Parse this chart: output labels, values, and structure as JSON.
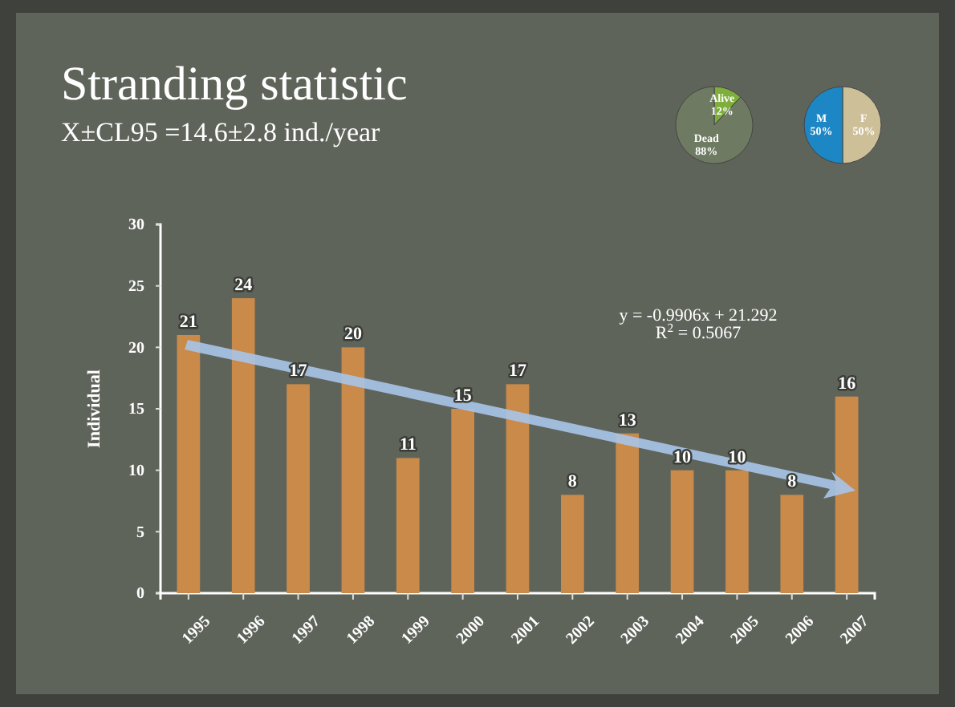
{
  "chart_data": [
    {
      "type": "bar",
      "title": "Stranding statistic",
      "subtitle": "X±CL95 =14.6±2.8 ind./year",
      "ylabel": "Individual",
      "categories": [
        "1995",
        "1996",
        "1997",
        "1998",
        "1999",
        "2000",
        "2001",
        "2002",
        "2003",
        "2004",
        "2005",
        "2006",
        "2007"
      ],
      "series": [
        {
          "type": "bar",
          "color": "#c98a4a",
          "values": [
            21,
            24,
            17,
            20,
            11,
            15,
            17,
            8,
            13,
            10,
            10,
            8,
            16
          ]
        }
      ],
      "data_labels": true,
      "ylim": [
        0,
        30
      ],
      "yticks": [
        0,
        5,
        10,
        15,
        20,
        25,
        30
      ],
      "annotations": [
        "y = -0.9906x + 21.292",
        "R$^{2}$ = 0.5067"
      ]
    },
    {
      "type": "pie",
      "categories": [
        "Alive",
        "Dead"
      ],
      "values": [
        12,
        88
      ],
      "colors": [
        "#7fae3c",
        "#6e7a62"
      ],
      "value_labels": [
        "12%",
        "88%"
      ]
    },
    {
      "type": "pie",
      "categories": [
        "F",
        "M"
      ],
      "values": [
        50,
        50
      ],
      "colors": [
        "#cdbf98",
        "#1d86c4"
      ],
      "value_labels": [
        "50%",
        "50%"
      ]
    }
  ]
}
